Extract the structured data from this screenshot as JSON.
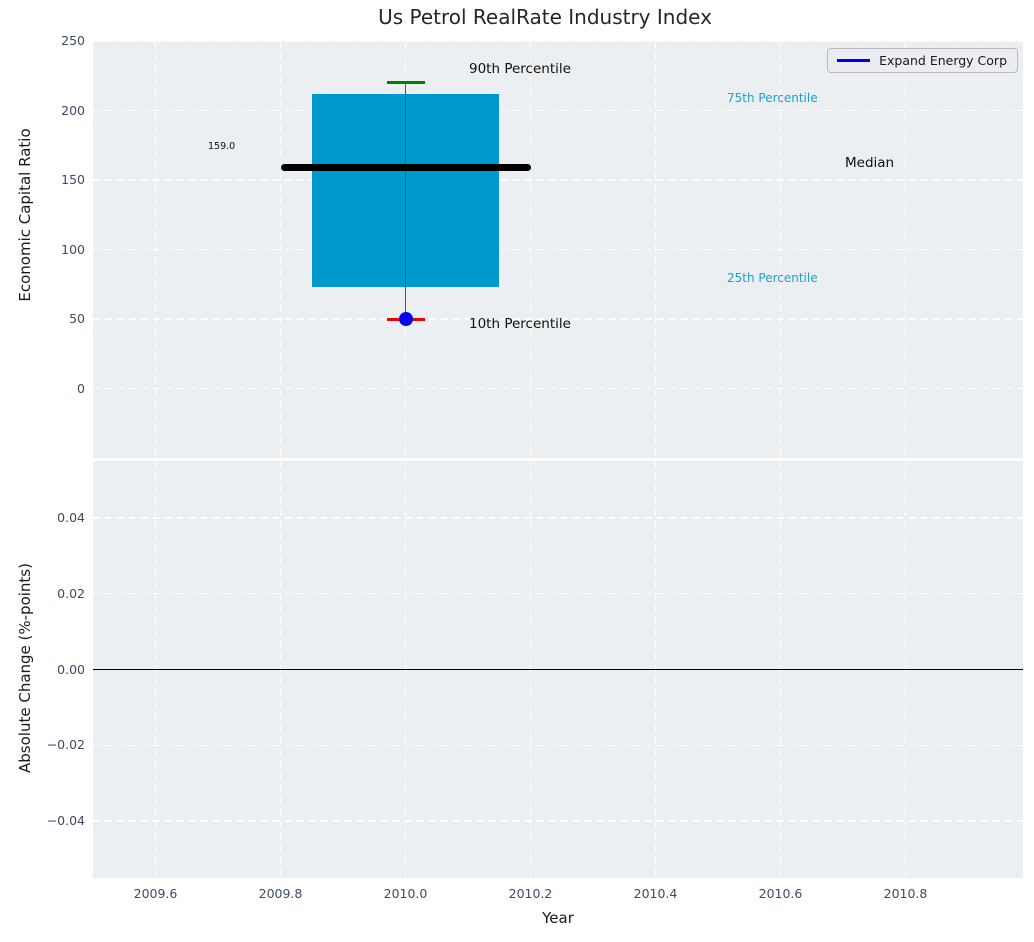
{
  "title": "Us Petrol RealRate Industry Index",
  "legend": {
    "label": "Expand Energy Corp",
    "line_color": "#0000ee"
  },
  "top_axes": {
    "ylabel": "Economic Capital Ratio",
    "ytick_labels": [
      "250",
      "200",
      "150",
      "100",
      "50",
      "0"
    ],
    "ytick_values": [
      250,
      200,
      150,
      100,
      50,
      0
    ],
    "ylim": [
      -50,
      250
    ],
    "annotations": {
      "p90": "90th Percentile",
      "p75": "75th Percentile",
      "median": "Median",
      "p25": "25th Percentile",
      "p10": "10th Percentile",
      "median_value": "159.0"
    }
  },
  "bottom_axes": {
    "ylabel": "Absolute Change (%-points)",
    "ytick_labels": [
      "0.04",
      "0.02",
      "0.00",
      "−0.02",
      "−0.04"
    ],
    "ytick_values": [
      0.04,
      0.02,
      0,
      -0.02,
      -0.04
    ],
    "ylim": [
      -0.055,
      0.055
    ]
  },
  "xaxis": {
    "label": "Year",
    "xtick_labels": [
      "2009.6",
      "2009.8",
      "2010.0",
      "2010.2",
      "2010.4",
      "2010.6",
      "2010.8"
    ],
    "xtick_values": [
      2009.6,
      2009.8,
      2010.0,
      2010.2,
      2010.4,
      2010.6,
      2010.8
    ],
    "xlim": [
      2009.5,
      2010.988
    ]
  },
  "chart_data": [
    {
      "type": "boxplot",
      "title": "Us Petrol RealRate Industry Index",
      "ylabel": "Economic Capital Ratio",
      "xlabel": "Year",
      "x": 2010,
      "p10": 50,
      "p25": 73,
      "median": 159,
      "p75": 212,
      "p90": 220,
      "median_annotation": "159.0",
      "box_xspan": [
        2009.85,
        2010.15
      ],
      "median_xspan": [
        2009.8,
        2010.2
      ],
      "box_color": "#0099cd",
      "median_color": "#000000",
      "whisker_color": "#555555",
      "p90_cap_color": "#008000",
      "p10_cap_color": "#ee0000",
      "series": [
        {
          "name": "Expand Energy Corp",
          "x": 2010,
          "y": 50,
          "marker": "circle",
          "color": "#0000ee"
        }
      ],
      "ylim": [
        -50,
        250
      ],
      "grid": true,
      "legend_position": "upper right"
    },
    {
      "type": "line",
      "ylabel": "Absolute Change (%-points)",
      "xlabel": "Year",
      "series": [],
      "zero_line_y": 0,
      "zero_line_color": "#000000",
      "ylim": [
        -0.055,
        0.055
      ],
      "xlim": [
        2009.5,
        2010.988
      ],
      "grid": true
    }
  ],
  "colors": {
    "plot_background": "#eceff1",
    "grid": "#ffffff",
    "tick_label": "#3d4c63",
    "percentile_label": "#1ba1d3",
    "annotation_text": "#101010"
  }
}
